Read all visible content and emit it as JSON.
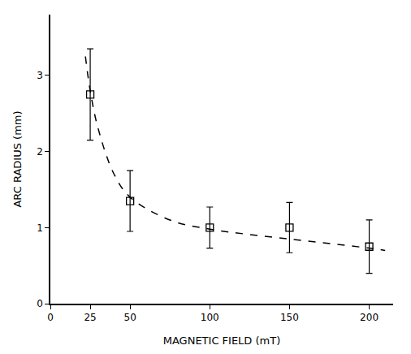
{
  "chart_data": {
    "type": "scatter",
    "x_label": "MAGNETIC FIELD (mT)",
    "y_label": "ARC RADIUS (mm)",
    "x": [
      25,
      50,
      100,
      150,
      200
    ],
    "values": [
      2.75,
      1.35,
      1.0,
      1.0,
      0.75
    ],
    "errors": [
      0.6,
      0.4,
      0.27,
      0.33,
      0.35
    ],
    "marker": "square-open",
    "color": "#000000",
    "fit": {
      "x": [
        22,
        25,
        30,
        40,
        50,
        75,
        100,
        150,
        200,
        210
      ],
      "values": [
        3.25,
        2.8,
        2.3,
        1.7,
        1.4,
        1.1,
        0.98,
        0.85,
        0.73,
        0.7
      ],
      "line_style": "dash",
      "color": "#000000"
    },
    "xlim": [
      0,
      215
    ],
    "xticks": [
      0,
      25,
      50,
      100,
      150,
      200
    ],
    "ylim": [
      0,
      3.8
    ],
    "yticks": [
      0,
      1,
      2,
      3
    ],
    "grid": false
  }
}
